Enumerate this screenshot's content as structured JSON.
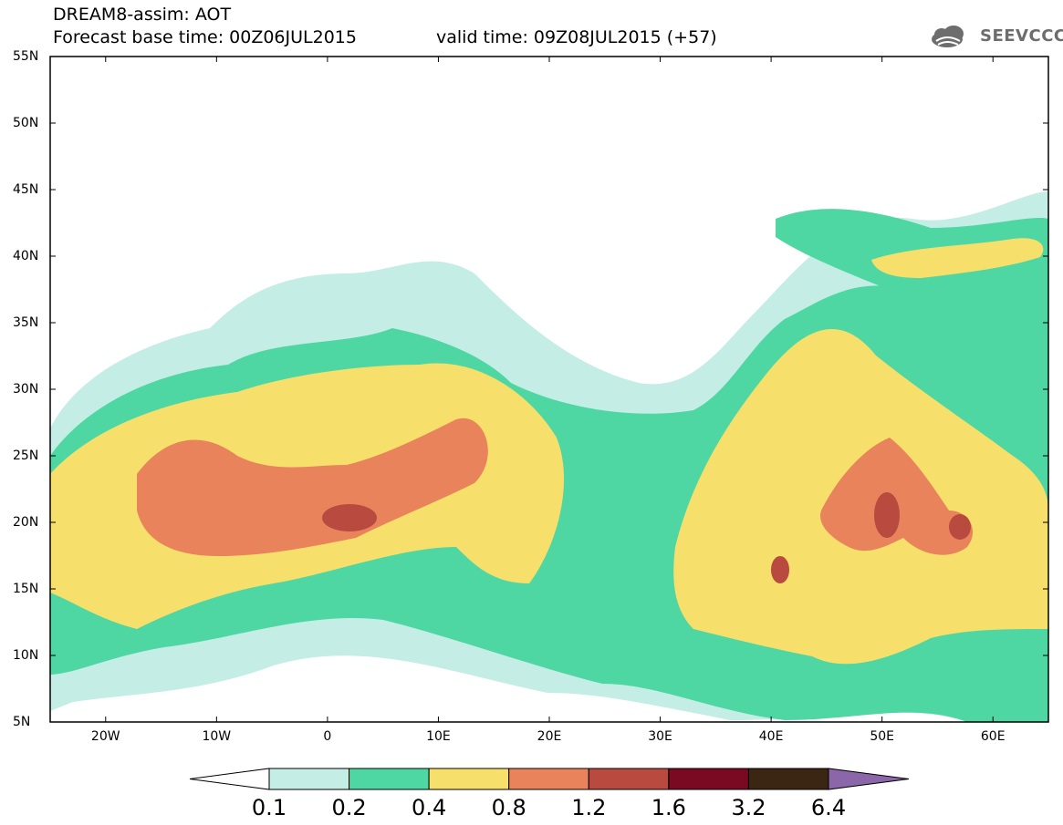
{
  "header": {
    "title": "DREAM8-assim: AOT",
    "base_time": "Forecast base time: 00Z06JUL2015",
    "valid_time": "valid time: 09Z08JUL2015 (+57)",
    "logo_text": "SEEVCCC"
  },
  "map": {
    "lat_labels": [
      "55N",
      "50N",
      "45N",
      "40N",
      "35N",
      "30N",
      "25N",
      "20N",
      "15N",
      "10N",
      "5N"
    ],
    "lon_labels": [
      "20W",
      "10W",
      "0",
      "10E",
      "20E",
      "30E",
      "40E",
      "50E",
      "60E"
    ],
    "lat_range": [
      5,
      55
    ],
    "lon_range": [
      -25,
      65
    ],
    "colors": {
      "land_line": "#000000",
      "background": "#ffffff"
    }
  },
  "legend": {
    "levels": [
      "0.1",
      "0.2",
      "0.4",
      "0.8",
      "1.2",
      "1.6",
      "3.2",
      "6.4"
    ],
    "colors": [
      "#c3ede5",
      "#4ed7a3",
      "#f7df6b",
      "#e8835b",
      "#b84a3f",
      "#7a0a22",
      "#3b2613"
    ],
    "over_color": "#8b66a8",
    "under_color": "#ffffff"
  }
}
